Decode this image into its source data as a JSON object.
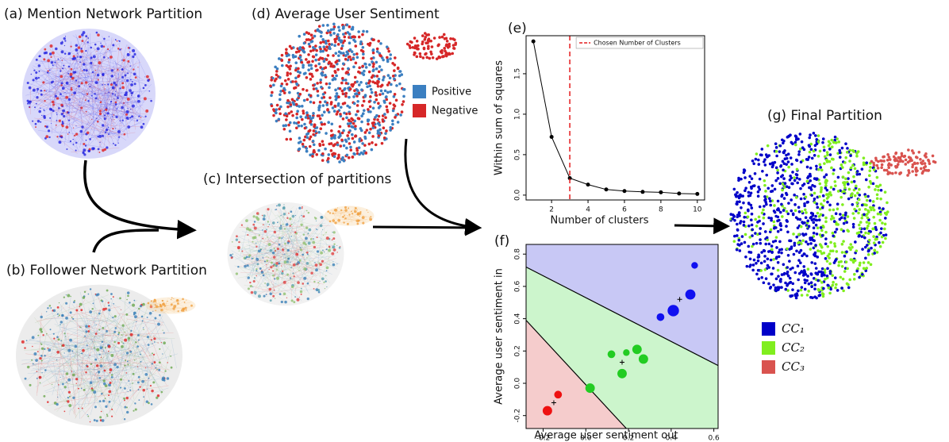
{
  "panels": {
    "a": {
      "title": "(a) Mention Network Partition"
    },
    "b": {
      "title": "(b) Follower Network Partition"
    },
    "c": {
      "title": "(c) Intersection of partitions"
    },
    "d": {
      "title": "(d) Average User Sentiment",
      "legend": [
        {
          "name": "Positive",
          "color": "#3b7fc1"
        },
        {
          "name": "Negative",
          "color": "#d62728"
        }
      ]
    },
    "g": {
      "title": "(g) Final Partition",
      "legend": [
        {
          "name": "CC₁",
          "color": "#0000c8"
        },
        {
          "name": "CC₂",
          "color": "#80ee1e"
        },
        {
          "name": "CC₃",
          "color": "#d9534f"
        }
      ]
    }
  },
  "chart_data": [
    {
      "type": "line",
      "title": "(e)",
      "xlabel": "Number of clusters",
      "ylabel": "Within sum of squares",
      "x": [
        1,
        2,
        3,
        4,
        5,
        6,
        7,
        8,
        9,
        10
      ],
      "values": [
        1.9,
        0.72,
        0.21,
        0.13,
        0.07,
        0.05,
        0.04,
        0.035,
        0.02,
        0.015
      ],
      "color": "#000000",
      "xlim": [
        0.6,
        10.4
      ],
      "ylim": [
        -0.06,
        1.97
      ],
      "xticks": [
        2,
        4,
        6,
        8,
        10
      ],
      "yticks": [
        {
          "value": 0,
          "label": "0.0"
        },
        {
          "value": 0.5,
          "label": "0.5"
        },
        {
          "value": 1,
          "label": "1.0"
        },
        {
          "value": 1.5,
          "label": "1.5"
        }
      ],
      "marker_line": {
        "x": 3,
        "label": "Chosen Number of Clusters",
        "color": "#e41a1c"
      }
    },
    {
      "type": "scatter",
      "title": "(f)",
      "xlabel": "Average user sentiment out",
      "ylabel": "Average user sentiment in",
      "xlim": [
        -0.28,
        0.62
      ],
      "ylim": [
        -0.28,
        0.86
      ],
      "xticks": [
        {
          "value": -0.2,
          "label": "-0.2"
        },
        {
          "value": 0,
          "label": "0.0"
        },
        {
          "value": 0.2,
          "label": "0.2"
        },
        {
          "value": 0.4,
          "label": "0.4"
        },
        {
          "value": 0.6,
          "label": "0.6"
        }
      ],
      "yticks": [
        {
          "value": -0.2,
          "label": "-0.2"
        },
        {
          "value": 0,
          "label": "0.0"
        },
        {
          "value": 0.2,
          "label": "0.2"
        },
        {
          "value": 0.4,
          "label": "0.4"
        },
        {
          "value": 0.6,
          "label": "0.6"
        },
        {
          "value": 0.8,
          "label": "0.8"
        }
      ],
      "background": "#ccf5cc",
      "boundaries": [
        {
          "x": [
            -0.28,
            0.62
          ],
          "y": [
            0.72,
            0.11
          ],
          "side": "above",
          "fill": "#c8c8f5"
        },
        {
          "x": [
            -0.28,
            0.19
          ],
          "y": [
            0.39,
            -0.28
          ],
          "side": "below",
          "fill": "#f5cccc"
        }
      ],
      "series": [
        {
          "color": "#1010f0",
          "x": [
            0.51,
            0.49,
            0.41,
            0.35
          ],
          "values": [
            0.73,
            0.55,
            0.45,
            0.41
          ],
          "sizes": [
            1,
            3,
            4,
            1.5
          ]
        },
        {
          "color": "#22cc22",
          "x": [
            0.12,
            0.19,
            0.24,
            0.27,
            0.17,
            0.02
          ],
          "values": [
            0.18,
            0.19,
            0.21,
            0.15,
            0.06,
            -0.03
          ],
          "sizes": [
            1.5,
            1,
            2.5,
            2.5,
            2.5,
            2.5
          ]
        },
        {
          "color": "#ee1111",
          "x": [
            -0.13,
            -0.18
          ],
          "values": [
            -0.07,
            -0.17
          ],
          "sizes": [
            1.5,
            2.5
          ]
        }
      ],
      "centroids": {
        "x": [
          0.44,
          0.17,
          -0.15
        ],
        "y": [
          0.52,
          0.13,
          -0.12
        ]
      }
    }
  ]
}
